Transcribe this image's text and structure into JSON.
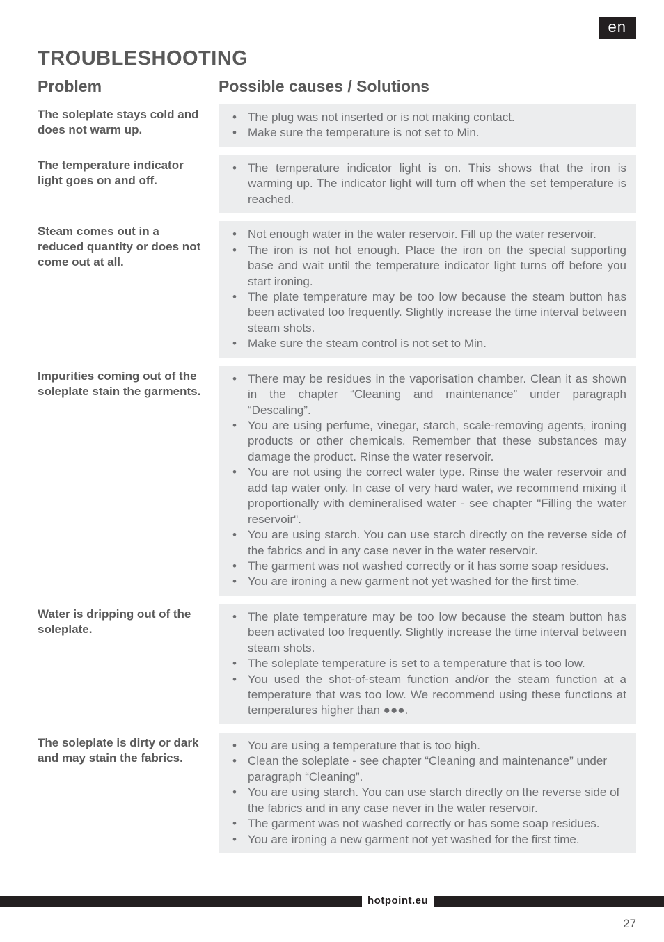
{
  "lang_badge": "en",
  "heading": "TROUBLESHOOTING",
  "col_headers": {
    "problem": "Problem",
    "solutions": "Possible causes / Solutions"
  },
  "rows": [
    {
      "problem": "The soleplate stays cold and does not warm up.",
      "solutions": [
        "The plug was not inserted or is not making contact.",
        "Make sure the temperature is not set to Min."
      ],
      "justify": false
    },
    {
      "problem": "The temperature indicator light goes on and off.",
      "solutions": [
        "The temperature indicator light is on. This shows that the iron is warming up. The indicator light will turn off when the set temperature is reached."
      ],
      "justify": true
    },
    {
      "problem": "Steam comes out in a reduced quantity or does not come out at all.",
      "solutions": [
        "Not enough water in the water reservoir. Fill up the water reservoir.",
        "The iron is not hot enough. Place the iron on the special supporting base and wait until the temperature indicator light turns off before you start ironing.",
        "The plate temperature may be too low because the steam button has been activated too frequently. Slightly increase the time interval between steam shots.",
        "Make sure the steam control is not set to Min."
      ],
      "justify": true
    },
    {
      "problem": "Impurities coming out of the soleplate stain the garments.",
      "solutions": [
        "There may be residues in the vaporisation chamber. Clean it as shown in the chapter “Cleaning and maintenance” under paragraph “Descaling”.",
        "You are using perfume, vinegar, starch, scale-removing agents, ironing products or other chemicals. Remember that these substances may damage the product. Rinse the water reservoir.",
        "You are not using the correct water type. Rinse the water reservoir and add tap water only. In case of very hard water, we recommend mixing it proportionally with demineralised water - see chapter \"Filling the water reservoir\".",
        "You are using starch. You can use starch directly on the reverse side of the fabrics and in any case never in the water reservoir.",
        "The garment was not washed correctly or it has some soap residues.",
        "You are ironing a new garment not yet washed for the first time."
      ],
      "justify": true
    },
    {
      "problem": "Water is dripping out of the soleplate.",
      "solutions": [
        "The plate temperature may be too low because the steam button has been activated too frequently. Slightly increase the time interval between steam shots.",
        "The soleplate temperature is set to a temperature that is too low.",
        "You used the shot-of-steam function and/or the steam function at a temperature that was too low. We recommend using these functions at temperatures higher than ●●●."
      ],
      "justify": true
    },
    {
      "problem": "The soleplate is dirty or dark and may stain the fabrics.",
      "solutions": [
        "You are using a temperature that is too high.",
        "Clean the soleplate - see chapter “Cleaning and maintenance” under paragraph “Cleaning”.",
        "You are using starch. You can use starch directly on the reverse side of the fabrics and in any case never in the water reservoir.",
        "The garment was not washed correctly or has some soap residues.",
        "You are ironing a new garment not yet washed for the first time."
      ],
      "justify": false
    }
  ],
  "footer_brand": "hotpoint.eu",
  "page_number": "27"
}
